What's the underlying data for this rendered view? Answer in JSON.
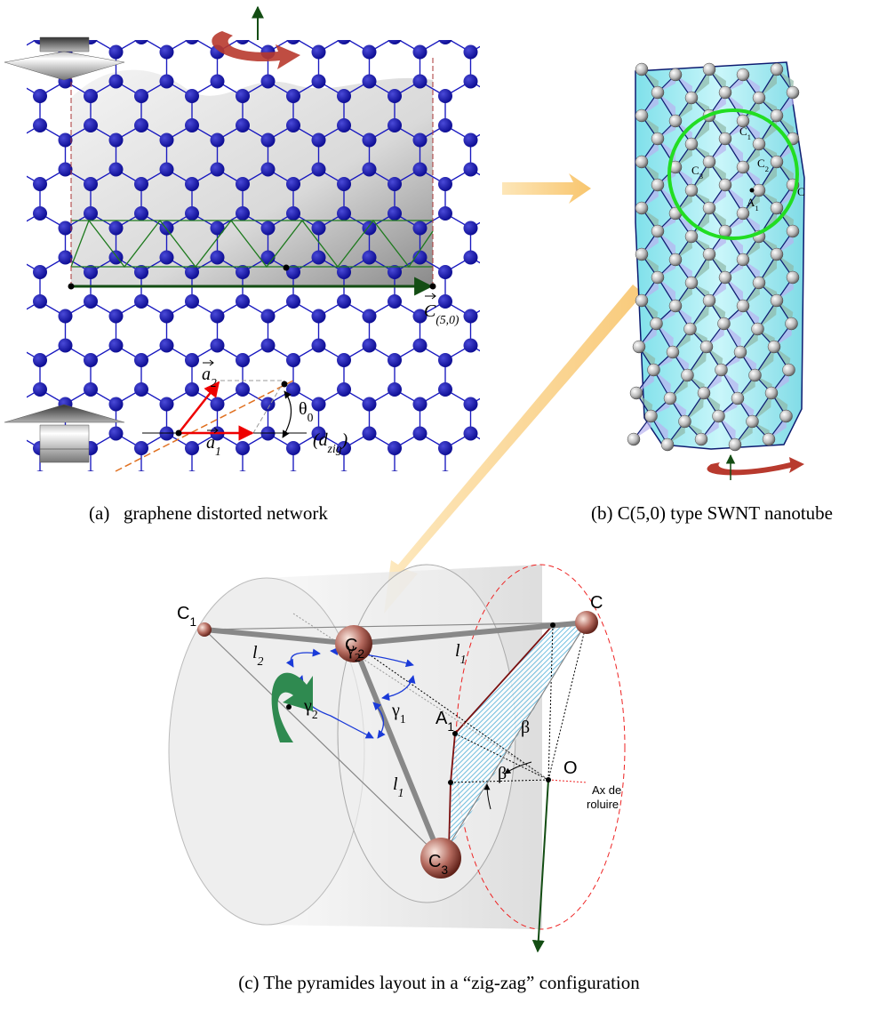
{
  "panel_a": {
    "caption": "(a)   graphene distorted network",
    "a2": {
      "t": "a",
      "s": "2"
    },
    "a1": {
      "t": "a",
      "s": "1"
    },
    "theta0": {
      "t": "θ",
      "s": "0"
    },
    "d_zig": {
      "t": "(d",
      "s": "zig",
      "end": ")"
    },
    "chiral_vector": {
      "t": "C",
      "s": "(5,0)"
    }
  },
  "panel_b": {
    "caption": "(b) C(5,0) type SWNT nanotube",
    "c1": {
      "t": "C",
      "s": "1"
    },
    "c2": {
      "t": "C",
      "s": "2"
    },
    "c3": {
      "t": "C",
      "s": "3"
    },
    "c": "C",
    "a1": {
      "t": "A",
      "s": "1"
    }
  },
  "panel_c": {
    "caption": "(c) The pyramides layout in a “zig-zag” configuration",
    "c1": {
      "t": "C",
      "s": "1"
    },
    "l2": {
      "t": "l",
      "s": "2"
    },
    "gamma2_top": {
      "t": "γ",
      "s": "2"
    },
    "c2": {
      "t": "C",
      "s": "2"
    },
    "l1_top": {
      "t": "l",
      "s": "1"
    },
    "c": "C",
    "a1": {
      "t": "A",
      "s": "1"
    },
    "gamma2_left": {
      "t": "γ",
      "s": "2"
    },
    "gamma1": {
      "t": "γ",
      "s": "1"
    },
    "l1_left": {
      "t": "l",
      "s": "1"
    },
    "beta_right": "β",
    "beta_left": "β",
    "o": "O",
    "axis_label": [
      "Ax de",
      "roluire"
    ],
    "c3": {
      "t": "C",
      "s": "3"
    }
  }
}
